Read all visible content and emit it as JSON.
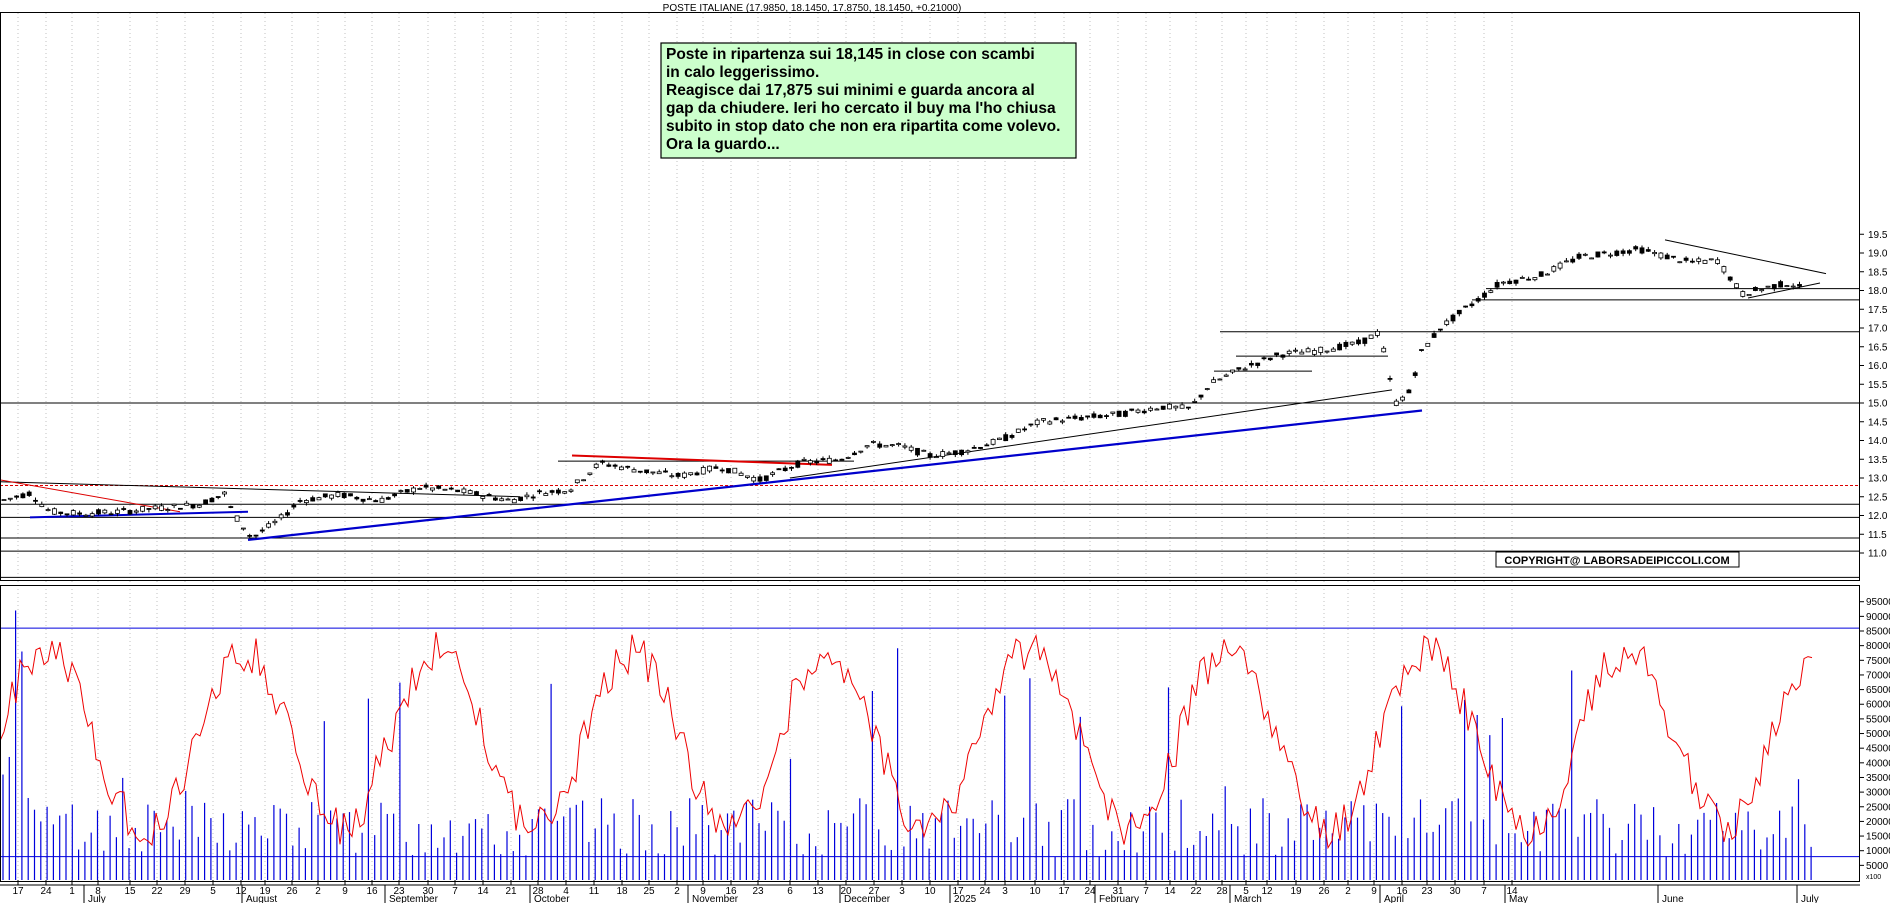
{
  "chart_data": [
    {
      "type": "candlestick",
      "title": "POSTE ITALIANE (17.9850, 18.1450, 17.8750, 18.1450, +0.21000)",
      "ylim": [
        10.0,
        19.8
      ],
      "y_ticks": [
        "11.0",
        "11.5",
        "12.0",
        "12.5",
        "13.0",
        "13.5",
        "14.0",
        "14.5",
        "15.0",
        "15.5",
        "16.0",
        "16.5",
        "17.0",
        "17.5",
        "18.0",
        "18.5",
        "19.0",
        "19.5"
      ],
      "grid": "vertical dotted",
      "annotation": {
        "lines": [
          "Poste in ripartenza sui 18,145 in close con scambi",
          "in calo leggerissimo.",
          "Reagisce dai 17,875 sui minimi e guarda ancora al",
          "gap da chiudere. Ieri ho cercato il buy ma l'ho chiusa",
          "subito in stop dato che non era ripartita come volevo.",
          "Ora la guardo..."
        ],
        "background": "#ccffcc"
      },
      "copyright": "COPYRIGHT@ LABORSADEIPICCOLI.COM",
      "horizontal_levels": [
        15.0,
        12.3,
        11.95,
        11.4,
        11.05,
        10.35,
        18.05,
        17.75,
        16.9
      ],
      "dashed_level": 12.8,
      "colors": {
        "candle": "#000000",
        "trend_blue": "#0000cc",
        "trend_red": "#dd0000",
        "dashed": "#dd0000"
      }
    },
    {
      "type": "bar+line",
      "series": [
        {
          "kind": "bar",
          "values_start": [
            36,
            42,
            92,
            78,
            28,
            24,
            20,
            25,
            19,
            22
          ]
        },
        {
          "kind": "line"
        }
      ],
      "ylim": [
        0,
        99000
      ],
      "y_ticks": [
        "5000",
        "10000",
        "15000",
        "20000",
        "25000",
        "30000",
        "35000",
        "40000",
        "45000",
        "50000",
        "55000",
        "60000",
        "65000",
        "70000",
        "75000",
        "80000",
        "85000",
        "90000",
        "95000"
      ],
      "reference_levels": [
        86000,
        8000
      ],
      "axis_label": "x100",
      "colors": {
        "volume": "#0000dd",
        "oscillator": "#ee0000",
        "reference": "#0000dd"
      }
    }
  ],
  "x_axis": {
    "day_ticks": [
      "17",
      "24",
      "1",
      "8",
      "15",
      "22",
      "29",
      "5",
      "12",
      "19",
      "26",
      "2",
      "9",
      "16",
      "23",
      "30",
      "7",
      "14",
      "21",
      "28",
      "4",
      "11",
      "18",
      "25",
      "2",
      "9",
      "16",
      "23",
      "6",
      "13",
      "20",
      "27",
      "3",
      "10",
      "17",
      "24",
      "3",
      "10",
      "17",
      "24",
      "31",
      "7",
      "14",
      "22",
      "28",
      "5",
      "12",
      "19",
      "26",
      "2",
      "9",
      "16",
      "23",
      "30",
      "7",
      "14"
    ],
    "months": [
      "July",
      "August",
      "September",
      "October",
      "November",
      "December",
      "2025",
      "February",
      "March",
      "April",
      "May",
      "June",
      "July"
    ]
  }
}
